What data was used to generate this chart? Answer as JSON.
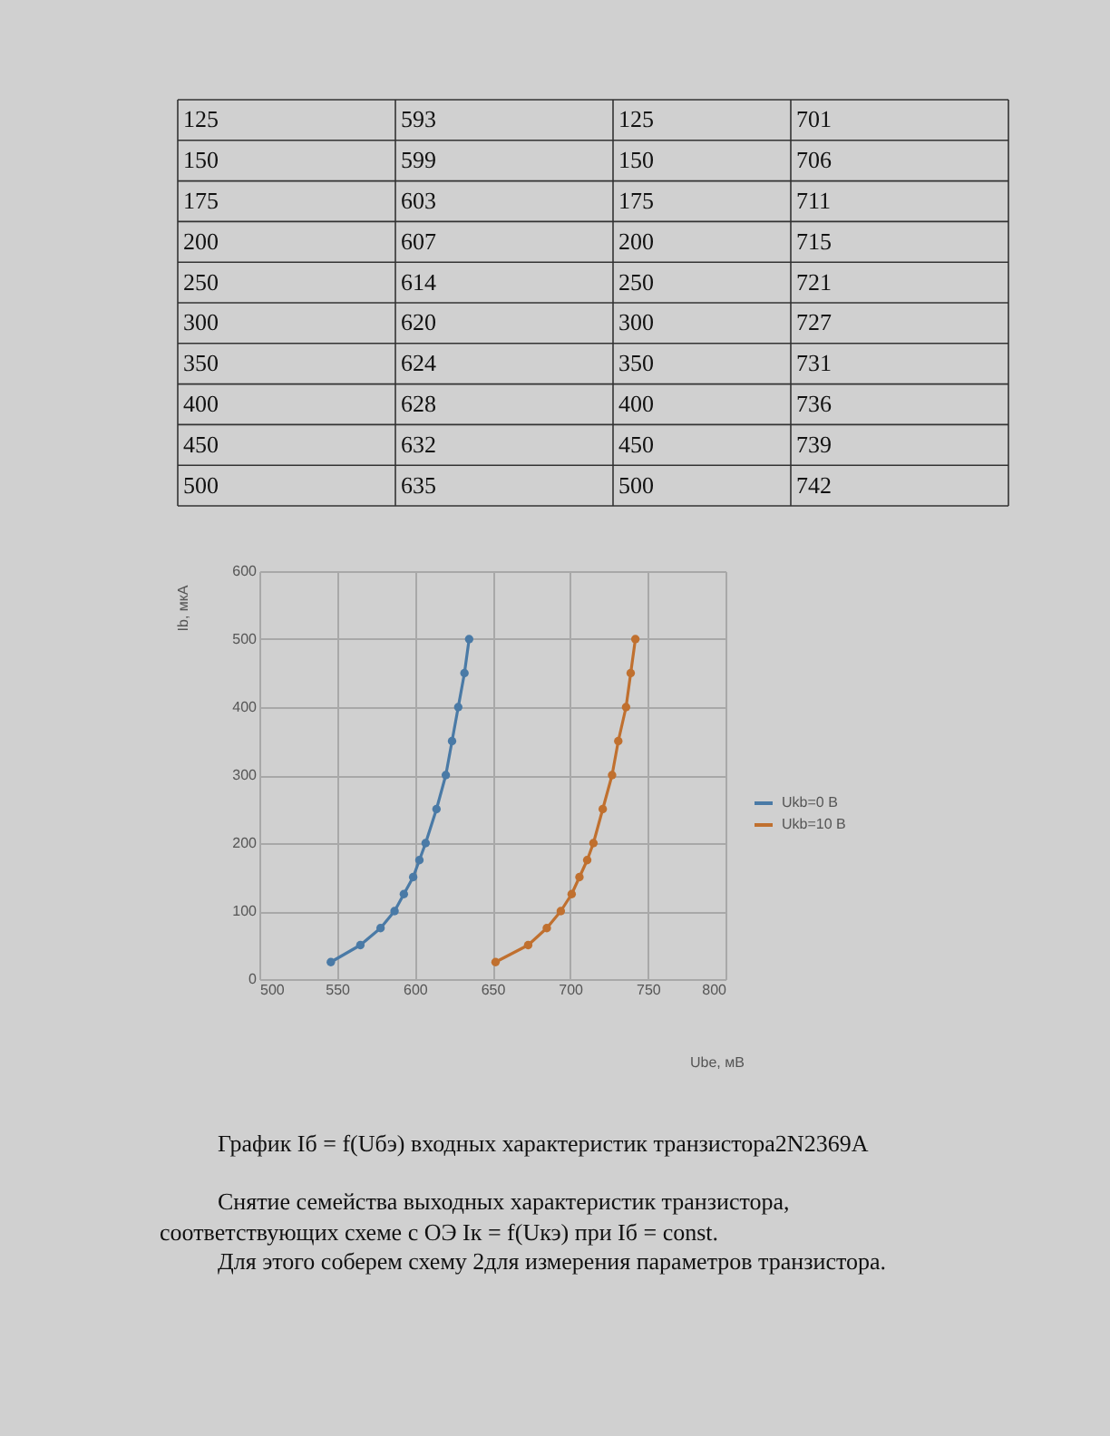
{
  "chart_data": {
    "type": "line",
    "xlabel": "Ube, мВ",
    "ylabel": "Ib, мкА",
    "xlim": [
      500,
      800
    ],
    "xticks": [
      500,
      550,
      600,
      650,
      700,
      750,
      800
    ],
    "ylim": [
      0,
      600
    ],
    "yticks": [
      0,
      100,
      200,
      300,
      400,
      500,
      600
    ],
    "grid": true,
    "legend": "right",
    "marker": "circle",
    "line_style": "solid",
    "series": [
      {
        "name": "Ukb=0 B",
        "color": "#4a7aa6",
        "x": [
          546,
          565,
          578,
          587,
          593,
          599,
          603,
          607,
          614,
          620,
          624,
          628,
          632,
          635
        ],
        "values": [
          25,
          50,
          75,
          100,
          125,
          150,
          175,
          200,
          250,
          300,
          350,
          400,
          450,
          500
        ]
      },
      {
        "name": "Ukb=10 B",
        "color": "#c0702f",
        "x": [
          652,
          673,
          685,
          694,
          701,
          706,
          711,
          715,
          721,
          727,
          731,
          736,
          739,
          742
        ],
        "values": [
          25,
          50,
          75,
          100,
          125,
          150,
          175,
          200,
          250,
          300,
          350,
          400,
          450,
          500
        ]
      }
    ],
    "annotations": [
      "125\t593\t125\t701",
      "150\t599\t150\t706",
      "175\t603\t175\t711",
      "200\t607\t200\t715",
      "250\t614\t250\t721",
      "300\t620\t300\t727",
      "350\t624\t350\t731",
      "400\t628\t400\t736",
      "450\t632\t450\t739",
      "500\t635\t500\t742",
      "График Iб = f(Uбэ) входных характеристик транзистора2N2369A",
      "Снятие семейства выходных характеристик транзистора,",
      "соответствующих схеме с ОЭ Iк = f(Uкэ) при Iб = const.",
      "Для этого соберем схему 2для измерения параметров транзистора."
    ]
  }
}
